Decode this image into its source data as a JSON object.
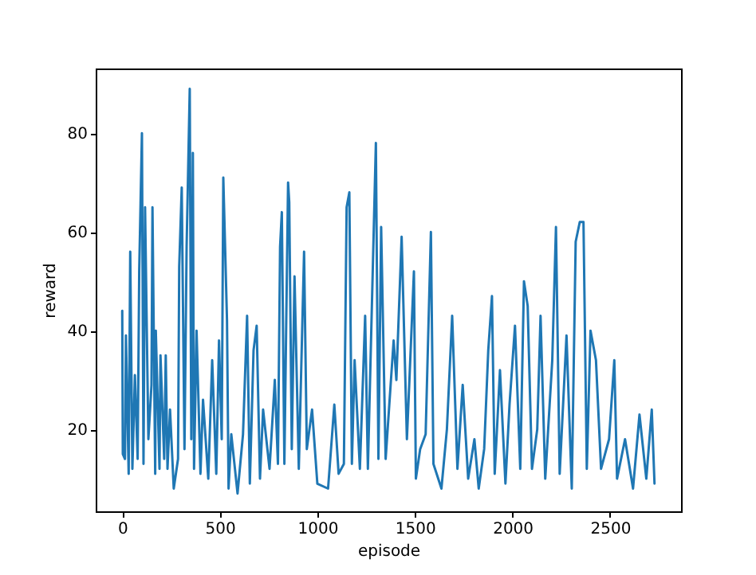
{
  "chart_data": {
    "type": "line",
    "xlabel": "episode",
    "ylabel": "reward",
    "x": [
      0,
      3,
      14,
      19,
      33,
      41,
      52,
      65,
      79,
      87,
      101,
      109,
      117,
      134,
      150,
      155,
      169,
      172,
      191,
      196,
      215,
      223,
      232,
      245,
      264,
      286,
      292,
      305,
      319,
      330,
      346,
      354,
      362,
      368,
      381,
      401,
      414,
      441,
      461,
      482,
      496,
      510,
      518,
      537,
      545,
      559,
      591,
      619,
      640,
      654,
      673,
      689,
      706,
      722,
      755,
      782,
      798,
      809,
      818,
      831,
      850,
      856,
      869,
      883,
      905,
      932,
      946,
      973,
      1000,
      1055,
      1087,
      1109,
      1136,
      1150,
      1164,
      1177,
      1191,
      1218,
      1245,
      1259,
      1300,
      1313,
      1327,
      1350,
      1391,
      1405,
      1432,
      1459,
      1473,
      1495,
      1505,
      1527,
      1555,
      1582,
      1595,
      1636,
      1664,
      1691,
      1718,
      1745,
      1773,
      1805,
      1827,
      1855,
      1876,
      1895,
      1909,
      1936,
      1964,
      1985,
      2013,
      2040,
      2059,
      2078,
      2100,
      2127,
      2144,
      2168,
      2204,
      2223,
      2242,
      2277,
      2304,
      2324,
      2345,
      2364,
      2381,
      2400,
      2428,
      2454,
      2495,
      2522,
      2536,
      2577,
      2618,
      2651,
      2686,
      2714,
      2728
    ],
    "series": [
      {
        "color": "#1f77b4",
        "values": [
          44,
          15,
          14,
          39,
          11,
          56,
          12,
          31,
          14,
          52,
          80,
          13,
          65,
          18,
          29,
          65,
          11,
          40,
          12,
          35,
          14,
          35,
          12,
          24,
          8,
          14,
          53,
          69,
          16,
          57,
          89,
          18,
          76,
          12,
          40,
          11,
          26,
          10,
          34,
          11,
          38,
          18,
          71,
          42,
          8,
          19,
          7,
          19,
          43,
          9,
          36,
          41,
          10,
          24,
          12,
          30,
          13,
          57,
          64,
          13,
          70,
          66,
          16,
          51,
          12,
          56,
          16,
          24,
          9,
          8,
          25,
          11,
          13,
          65,
          68,
          13,
          34,
          12,
          43,
          12,
          78,
          14,
          61,
          14,
          38,
          30,
          59,
          18,
          31,
          52,
          10,
          16,
          19,
          60,
          13,
          8,
          20,
          43,
          12,
          29,
          10,
          18,
          8,
          16,
          36,
          47,
          11,
          32,
          9,
          25,
          41,
          12,
          50,
          45,
          12,
          20,
          43,
          10,
          34,
          61,
          11,
          39,
          8,
          58,
          62,
          62,
          12,
          40,
          34,
          12,
          18,
          34,
          10,
          18,
          8,
          23,
          10,
          24,
          9
        ]
      }
    ],
    "xlim": [
      -136,
      2864
    ],
    "ylim": [
      3.4,
      93.1
    ],
    "xticks": [
      0,
      500,
      1000,
      1500,
      2000,
      2500
    ],
    "yticks": [
      20,
      40,
      60,
      80
    ],
    "grid": false,
    "line_style": "solid",
    "marker": "none"
  }
}
